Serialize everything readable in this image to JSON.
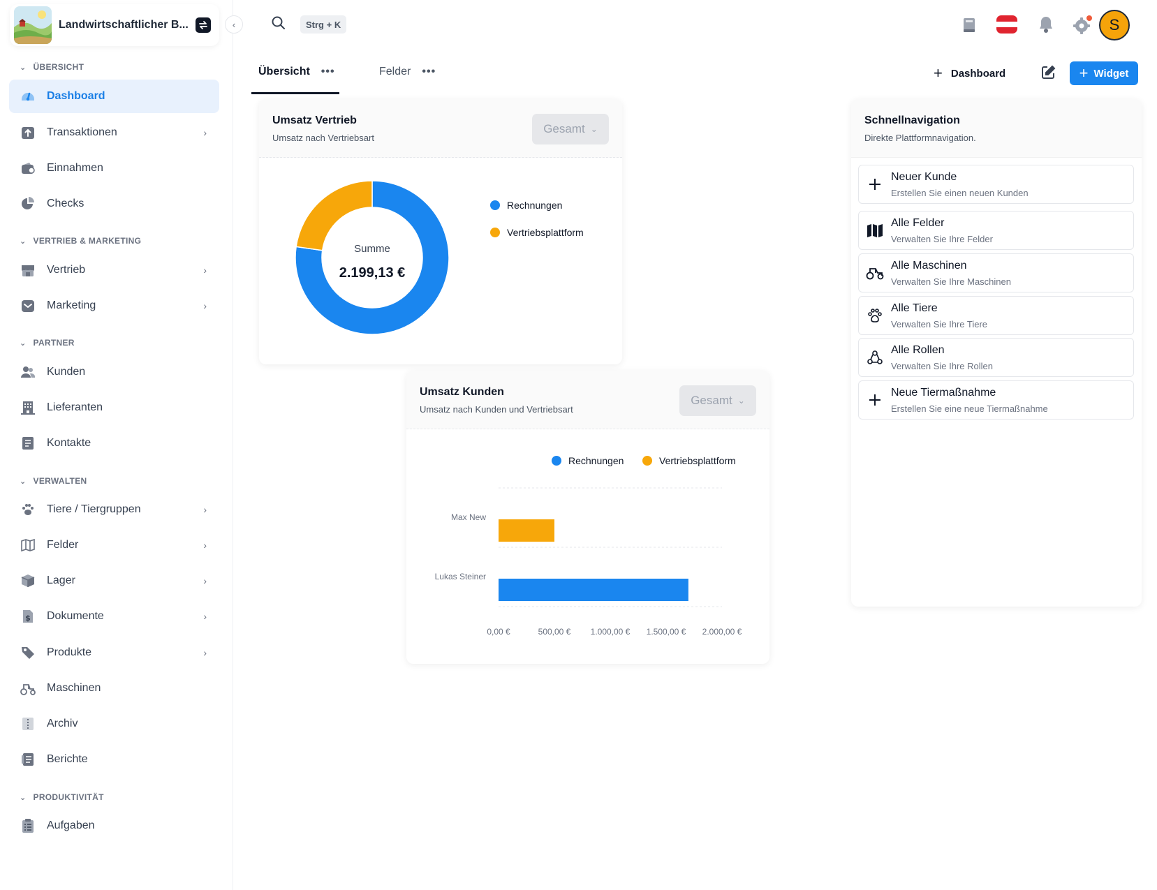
{
  "app": {
    "org_name": "Landwirtschaftlicher B...",
    "search_shortcut": "Strg + K"
  },
  "sidebar": {
    "sections": {
      "uebersicht": "ÜBERSICHT",
      "vertrieb_marketing": "VERTRIEB & MARKETING",
      "partner": "PARTNER",
      "verwalten": "VERWALTEN",
      "produktivitaet": "PRODUKTIVITÄT"
    },
    "items": {
      "dashboard": "Dashboard",
      "transaktionen": "Transaktionen",
      "einnahmen": "Einnahmen",
      "checks": "Checks",
      "vertrieb": "Vertrieb",
      "marketing": "Marketing",
      "kunden": "Kunden",
      "lieferanten": "Lieferanten",
      "kontakte": "Kontakte",
      "tiere": "Tiere / Tiergruppen",
      "felder": "Felder",
      "lager": "Lager",
      "dokumente": "Dokumente",
      "produkte": "Produkte",
      "maschinen": "Maschinen",
      "archiv": "Archiv",
      "berichte": "Berichte",
      "aufgaben": "Aufgaben"
    }
  },
  "topbar": {
    "avatar_letter": "S"
  },
  "tabs": {
    "uebersicht": "Übersicht",
    "felder": "Felder",
    "dots": "•••",
    "add_dashboard": "Dashboard",
    "add_widget": "Widget"
  },
  "umsatz_vertrieb": {
    "title": "Umsatz Vertrieb",
    "subtitle": "Umsatz nach Vertriebsart",
    "select_value": "Gesamt",
    "center_label": "Summe",
    "center_value": "2.199,13 €"
  },
  "umsatz_kunden": {
    "title": "Umsatz Kunden",
    "subtitle": "Umsatz nach Kunden und Vertriebsart",
    "select_value": "Gesamt"
  },
  "schnellnavigation": {
    "title": "Schnellnavigation",
    "subtitle": "Direkte Plattformnavigation.",
    "items": [
      {
        "title": "Neuer Kunde",
        "subtitle": "Erstellen Sie einen neuen Kunden",
        "icon": "plus-icon"
      },
      {
        "title": "Alle Felder",
        "subtitle": "Verwalten Sie Ihre Felder",
        "icon": "map-icon"
      },
      {
        "title": "Alle Maschinen",
        "subtitle": "Verwalten Sie Ihre Maschinen",
        "icon": "tractor-icon"
      },
      {
        "title": "Alle Tiere",
        "subtitle": "Verwalten Sie Ihre Tiere",
        "icon": "paw-icon"
      },
      {
        "title": "Alle Rollen",
        "subtitle": "Verwalten Sie Ihre Rollen",
        "icon": "roles-icon"
      },
      {
        "title": "Neue Tiermaßnahme",
        "subtitle": "Erstellen Sie eine neue Tiermaßnahme",
        "icon": "plus-icon"
      }
    ]
  },
  "colors": {
    "accent": "#1a86ef",
    "rechnungen": "#1a86ef",
    "vertriebsplattform": "#f7a70a"
  },
  "chart_data": [
    {
      "type": "pie",
      "title": "Umsatz Vertrieb",
      "categories": [
        "Rechnungen",
        "Vertriebsplattform"
      ],
      "values": [
        1699.13,
        500.0
      ],
      "colors": [
        "#1a86ef",
        "#f7a70a"
      ],
      "center_label": "Summe",
      "center_value": "2.199,13 €",
      "legend": "right"
    },
    {
      "type": "bar",
      "orientation": "horizontal",
      "title": "Umsatz Kunden",
      "categories": [
        "Max New",
        "Lukas Steiner"
      ],
      "series": [
        {
          "name": "Vertriebsplattform",
          "color": "#f7a70a",
          "values": [
            500.0,
            0
          ]
        },
        {
          "name": "Rechnungen",
          "color": "#1a86ef",
          "values": [
            0,
            1699.13
          ]
        }
      ],
      "xlim": [
        0,
        2000
      ],
      "xticks": [
        "0,00 €",
        "500,00 €",
        "1.000,00 €",
        "1.500,00 €",
        "2.000,00 €"
      ],
      "legend_labels": [
        "Rechnungen",
        "Vertriebsplattform"
      ],
      "legend": "top-right",
      "grid": true
    }
  ]
}
